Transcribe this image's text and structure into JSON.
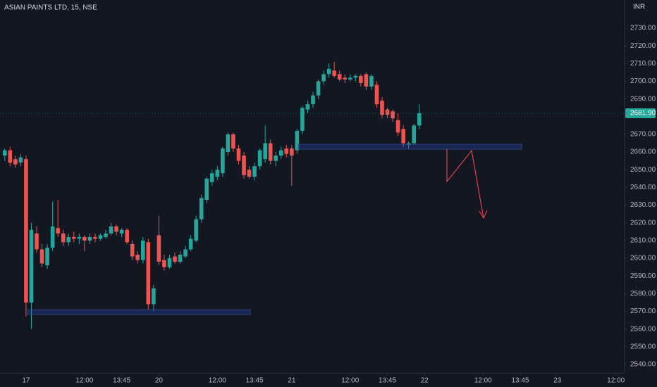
{
  "chart_data": {
    "type": "candlestick",
    "title": "ASIAN PAINTS LTD, 15, NSE",
    "currency": "INR",
    "up_color": "#26a69a",
    "down_color": "#ef5350",
    "grid": false,
    "last_price": {
      "value": 2681.9,
      "label": "2681.90"
    },
    "x": [
      -4,
      -3,
      -2,
      -1,
      0,
      1,
      2,
      3,
      4,
      5,
      6,
      7,
      8,
      9,
      10,
      11,
      12,
      13,
      14,
      15,
      16,
      17,
      18,
      19,
      20,
      21,
      22,
      23,
      24,
      25,
      26,
      27,
      28,
      29,
      30,
      31,
      32,
      33,
      34,
      35,
      36,
      37,
      38,
      39,
      40,
      41,
      42,
      43,
      44,
      45,
      46,
      47,
      48,
      49,
      50,
      51,
      52,
      53,
      54,
      55,
      56,
      57,
      58,
      59,
      60,
      61,
      62,
      63,
      64,
      65,
      66,
      67,
      68,
      69,
      70,
      71,
      72,
      73,
      74
    ],
    "open": [
      2658,
      2661,
      2656,
      2654,
      2656,
      2575,
      2614,
      2605,
      2596,
      2606,
      2617,
      2614,
      2609,
      2612,
      2611,
      2612,
      2610,
      2612,
      2611,
      2612,
      2614,
      2618,
      2614,
      2616,
      2608,
      2602,
      2599,
      2609,
      2574,
      2613,
      2599,
      2595,
      2601,
      2598,
      2601,
      2605,
      2610,
      2622,
      2633,
      2643,
      2646,
      2648,
      2660,
      2670,
      2662,
      2658,
      2650,
      2646,
      2652,
      2656,
      2665,
      2655,
      2658,
      2662,
      2662,
      2661,
      2672,
      2684,
      2687,
      2692,
      2700,
      2704,
      2706,
      2704,
      2702,
      2701,
      2702,
      2703,
      2704,
      2697,
      2698,
      2689,
      2684,
      2683,
      2678,
      2673,
      2664,
      2665,
      2675
    ],
    "high": [
      2662,
      2663,
      2658,
      2659,
      2658,
      2620,
      2618,
      2608,
      2608,
      2632,
      2633,
      2616,
      2614,
      2615,
      2614,
      2613,
      2614,
      2614,
      2614,
      2616,
      2620,
      2619,
      2617,
      2617,
      2610,
      2604,
      2612,
      2611,
      2585,
      2624,
      2602,
      2602,
      2603,
      2604,
      2607,
      2613,
      2624,
      2636,
      2646,
      2650,
      2652,
      2663,
      2671,
      2671,
      2664,
      2660,
      2652,
      2654,
      2662,
      2675,
      2667,
      2660,
      2663,
      2664,
      2664,
      2673,
      2686,
      2689,
      2694,
      2701,
      2706,
      2710,
      2711,
      2706,
      2704,
      2704,
      2704,
      2704,
      2705,
      2704,
      2700,
      2691,
      2685,
      2684,
      2682,
      2675,
      2666,
      2676,
      2687
    ],
    "low": [
      2655,
      2652,
      2651,
      2652,
      2567,
      2560,
      2603,
      2595,
      2594,
      2604,
      2612,
      2607,
      2607,
      2609,
      2608,
      2604,
      2608,
      2609,
      2610,
      2611,
      2613,
      2613,
      2612,
      2608,
      2599,
      2597,
      2597,
      2571,
      2570,
      2596,
      2593,
      2594,
      2597,
      2597,
      2600,
      2604,
      2609,
      2620,
      2631,
      2641,
      2644,
      2646,
      2658,
      2660,
      2653,
      2645,
      2645,
      2644,
      2650,
      2654,
      2653,
      2652,
      2656,
      2657,
      2641,
      2659,
      2670,
      2682,
      2685,
      2690,
      2698,
      2702,
      2702,
      2700,
      2699,
      2700,
      2700,
      2697,
      2695,
      2695,
      2685,
      2679,
      2679,
      2677,
      2669,
      2663,
      2662,
      2664,
      2673
    ],
    "close": [
      2661,
      2654,
      2653,
      2657,
      2575,
      2616,
      2605,
      2597,
      2606,
      2618,
      2614,
      2609,
      2612,
      2611,
      2612,
      2610,
      2612,
      2611,
      2613,
      2614,
      2618,
      2615,
      2616,
      2609,
      2601,
      2599,
      2610,
      2574,
      2583,
      2598,
      2595,
      2600,
      2598,
      2602,
      2605,
      2611,
      2622,
      2634,
      2645,
      2648,
      2650,
      2662,
      2670,
      2662,
      2655,
      2647,
      2646,
      2652,
      2661,
      2665,
      2655,
      2658,
      2661,
      2659,
      2658,
      2672,
      2685,
      2687,
      2692,
      2700,
      2704,
      2707,
      2703,
      2701,
      2701,
      2702,
      2703,
      2699,
      2697,
      2703,
      2687,
      2681,
      2681,
      2679,
      2671,
      2665,
      2665,
      2675,
      2681.9
    ],
    "xlim": [
      -4.9,
      112.5
    ],
    "xticks": [
      {
        "value": 0,
        "label": "17"
      },
      {
        "value": 11,
        "label": "12:00"
      },
      {
        "value": 18,
        "label": "13:45"
      },
      {
        "value": 25,
        "label": "20"
      },
      {
        "value": 36,
        "label": "12:00"
      },
      {
        "value": 43,
        "label": "13:45"
      },
      {
        "value": 50,
        "label": "21"
      },
      {
        "value": 61,
        "label": "12:00"
      },
      {
        "value": 68,
        "label": "13:45"
      },
      {
        "value": 75,
        "label": "22"
      },
      {
        "value": 86,
        "label": "12:00"
      },
      {
        "value": 93,
        "label": "13:45"
      },
      {
        "value": 100,
        "label": "23"
      },
      {
        "value": 111,
        "label": "12:00"
      }
    ],
    "ylim": [
      2535.2,
      2745.9
    ],
    "yticks": [
      {
        "value": 2540,
        "label": "2540.00"
      },
      {
        "value": 2550,
        "label": "2550.00"
      },
      {
        "value": 2560,
        "label": "2560.00"
      },
      {
        "value": 2570,
        "label": "2570.00"
      },
      {
        "value": 2580,
        "label": "2580.00"
      },
      {
        "value": 2590,
        "label": "2590.00"
      },
      {
        "value": 2600,
        "label": "2600.00"
      },
      {
        "value": 2610,
        "label": "2610.00"
      },
      {
        "value": 2620,
        "label": "2620.00"
      },
      {
        "value": 2630,
        "label": "2630.00"
      },
      {
        "value": 2640,
        "label": "2640.00"
      },
      {
        "value": 2650,
        "label": "2650.00"
      },
      {
        "value": 2660,
        "label": "2660.00"
      },
      {
        "value": 2670,
        "label": "2670.00"
      },
      {
        "value": 2690,
        "label": "2690.00"
      },
      {
        "value": 2700,
        "label": "2700.00"
      },
      {
        "value": 2710,
        "label": "2710.00"
      },
      {
        "value": 2720,
        "label": "2720.00"
      },
      {
        "value": 2730,
        "label": "2730.00"
      }
    ]
  }
}
